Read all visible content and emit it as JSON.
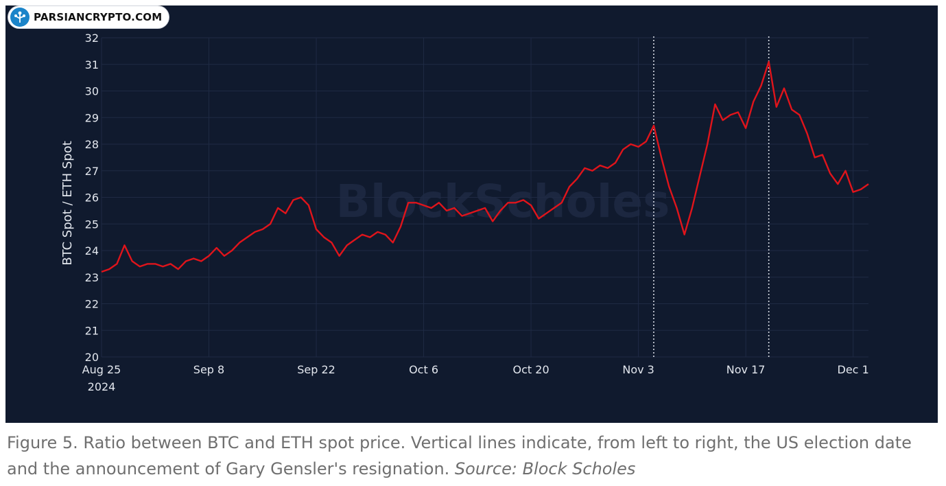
{
  "badge": {
    "text": "PARSIANCRYPTO.COM",
    "icon": "tree-network-icon",
    "color": "#1b84c9"
  },
  "watermark": "BlockScholes",
  "caption": {
    "main": "Figure 5. Ratio between BTC and ETH spot price. Vertical lines indicate, from left to right, the US election date and the announcement of Gary Gensler's resignation. ",
    "source": "Source: Block Scholes"
  },
  "chart_data": {
    "type": "line",
    "title": "",
    "xlabel": "",
    "ylabel": "BTC Spot / ETH Spot",
    "ylim": [
      20,
      32
    ],
    "yticks": [
      20,
      21,
      22,
      23,
      24,
      25,
      26,
      27,
      28,
      29,
      30,
      31,
      32
    ],
    "xlim": [
      "2024-08-25",
      "2024-12-03"
    ],
    "xticks": [
      {
        "date": "2024-08-25",
        "label": "Aug 25",
        "sublabel": "2024"
      },
      {
        "date": "2024-09-08",
        "label": "Sep 8"
      },
      {
        "date": "2024-09-22",
        "label": "Sep 22"
      },
      {
        "date": "2024-10-06",
        "label": "Oct 6"
      },
      {
        "date": "2024-10-20",
        "label": "Oct 20"
      },
      {
        "date": "2024-11-03",
        "label": "Nov 3"
      },
      {
        "date": "2024-11-17",
        "label": "Nov 17"
      },
      {
        "date": "2024-12-01",
        "label": "Dec 1"
      }
    ],
    "grid": true,
    "background": "#101a2e",
    "gridColor": "#1f2a44",
    "lineColor": "#e0141b",
    "vlines": [
      {
        "date": "2024-11-05",
        "style": "dotted",
        "color": "#d9dde6"
      },
      {
        "date": "2024-11-20",
        "style": "dotted",
        "color": "#d9dde6"
      }
    ],
    "series": [
      {
        "name": "",
        "points": [
          [
            "2024-08-25",
            23.2
          ],
          [
            "2024-08-26",
            23.3
          ],
          [
            "2024-08-27",
            23.5
          ],
          [
            "2024-08-28",
            24.2
          ],
          [
            "2024-08-29",
            23.6
          ],
          [
            "2024-08-30",
            23.4
          ],
          [
            "2024-08-31",
            23.5
          ],
          [
            "2024-09-01",
            23.5
          ],
          [
            "2024-09-02",
            23.4
          ],
          [
            "2024-09-03",
            23.5
          ],
          [
            "2024-09-04",
            23.3
          ],
          [
            "2024-09-05",
            23.6
          ],
          [
            "2024-09-06",
            23.7
          ],
          [
            "2024-09-07",
            23.6
          ],
          [
            "2024-09-08",
            23.8
          ],
          [
            "2024-09-09",
            24.1
          ],
          [
            "2024-09-10",
            23.8
          ],
          [
            "2024-09-11",
            24.0
          ],
          [
            "2024-09-12",
            24.3
          ],
          [
            "2024-09-13",
            24.5
          ],
          [
            "2024-09-14",
            24.7
          ],
          [
            "2024-09-15",
            24.8
          ],
          [
            "2024-09-16",
            25.0
          ],
          [
            "2024-09-17",
            25.6
          ],
          [
            "2024-09-18",
            25.4
          ],
          [
            "2024-09-19",
            25.9
          ],
          [
            "2024-09-20",
            26.0
          ],
          [
            "2024-09-21",
            25.7
          ],
          [
            "2024-09-22",
            24.8
          ],
          [
            "2024-09-23",
            24.5
          ],
          [
            "2024-09-24",
            24.3
          ],
          [
            "2024-09-25",
            23.8
          ],
          [
            "2024-09-26",
            24.2
          ],
          [
            "2024-09-27",
            24.4
          ],
          [
            "2024-09-28",
            24.6
          ],
          [
            "2024-09-29",
            24.5
          ],
          [
            "2024-09-30",
            24.7
          ],
          [
            "2024-10-01",
            24.6
          ],
          [
            "2024-10-02",
            24.3
          ],
          [
            "2024-10-03",
            24.9
          ],
          [
            "2024-10-04",
            25.8
          ],
          [
            "2024-10-05",
            25.8
          ],
          [
            "2024-10-06",
            25.7
          ],
          [
            "2024-10-07",
            25.6
          ],
          [
            "2024-10-08",
            25.8
          ],
          [
            "2024-10-09",
            25.5
          ],
          [
            "2024-10-10",
            25.6
          ],
          [
            "2024-10-11",
            25.3
          ],
          [
            "2024-10-12",
            25.4
          ],
          [
            "2024-10-13",
            25.5
          ],
          [
            "2024-10-14",
            25.6
          ],
          [
            "2024-10-15",
            25.1
          ],
          [
            "2024-10-16",
            25.5
          ],
          [
            "2024-10-17",
            25.8
          ],
          [
            "2024-10-18",
            25.8
          ],
          [
            "2024-10-19",
            25.9
          ],
          [
            "2024-10-20",
            25.7
          ],
          [
            "2024-10-21",
            25.2
          ],
          [
            "2024-10-22",
            25.4
          ],
          [
            "2024-10-23",
            25.6
          ],
          [
            "2024-10-24",
            25.8
          ],
          [
            "2024-10-25",
            26.4
          ],
          [
            "2024-10-26",
            26.7
          ],
          [
            "2024-10-27",
            27.1
          ],
          [
            "2024-10-28",
            27.0
          ],
          [
            "2024-10-29",
            27.2
          ],
          [
            "2024-10-30",
            27.1
          ],
          [
            "2024-10-31",
            27.3
          ],
          [
            "2024-11-01",
            27.8
          ],
          [
            "2024-11-02",
            28.0
          ],
          [
            "2024-11-03",
            27.9
          ],
          [
            "2024-11-04",
            28.1
          ],
          [
            "2024-11-05",
            28.7
          ],
          [
            "2024-11-06",
            27.5
          ],
          [
            "2024-11-07",
            26.4
          ],
          [
            "2024-11-08",
            25.6
          ],
          [
            "2024-11-09",
            24.6
          ],
          [
            "2024-11-10",
            25.6
          ],
          [
            "2024-11-11",
            26.8
          ],
          [
            "2024-11-12",
            28.0
          ],
          [
            "2024-11-13",
            29.5
          ],
          [
            "2024-11-14",
            28.9
          ],
          [
            "2024-11-15",
            29.1
          ],
          [
            "2024-11-16",
            29.2
          ],
          [
            "2024-11-17",
            28.6
          ],
          [
            "2024-11-18",
            29.6
          ],
          [
            "2024-11-19",
            30.2
          ],
          [
            "2024-11-20",
            31.1
          ],
          [
            "2024-11-21",
            29.4
          ],
          [
            "2024-11-22",
            30.1
          ],
          [
            "2024-11-23",
            29.3
          ],
          [
            "2024-11-24",
            29.1
          ],
          [
            "2024-11-25",
            28.4
          ],
          [
            "2024-11-26",
            27.5
          ],
          [
            "2024-11-27",
            27.6
          ],
          [
            "2024-11-28",
            26.9
          ],
          [
            "2024-11-29",
            26.5
          ],
          [
            "2024-11-30",
            27.0
          ],
          [
            "2024-12-01",
            26.2
          ],
          [
            "2024-12-02",
            26.3
          ],
          [
            "2024-12-03",
            26.5
          ]
        ]
      }
    ]
  }
}
